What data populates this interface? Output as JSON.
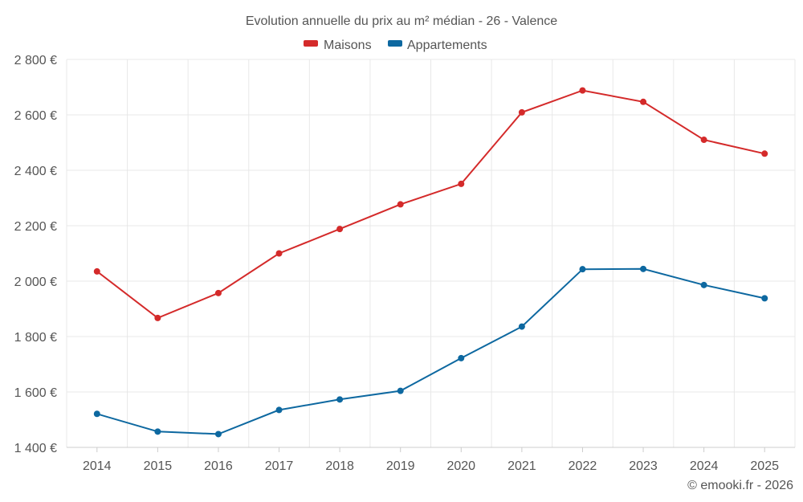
{
  "chart_data": {
    "type": "line",
    "title": "Evolution annuelle du prix au m² médian - 26 - Valence",
    "xlabel": "",
    "ylabel": "",
    "categories": [
      "2014",
      "2015",
      "2016",
      "2017",
      "2018",
      "2019",
      "2020",
      "2021",
      "2022",
      "2023",
      "2024",
      "2025"
    ],
    "ylim": [
      1400,
      2800
    ],
    "yticks": [
      1400,
      1600,
      1800,
      2000,
      2200,
      2400,
      2600,
      2800
    ],
    "ytick_labels": [
      "1 400 €",
      "1 600 €",
      "1 800 €",
      "2 000 €",
      "2 200 €",
      "2 400 €",
      "2 600 €",
      "2 800 €"
    ],
    "grid": true,
    "legend_position": "top-center",
    "series": [
      {
        "name": "Maisons",
        "color": "#d42a2a",
        "values": [
          2035,
          1867,
          1957,
          2100,
          2188,
          2277,
          2351,
          2609,
          2688,
          2647,
          2510,
          2460
        ]
      },
      {
        "name": "Appartements",
        "color": "#0d68a0",
        "values": [
          1521,
          1457,
          1448,
          1535,
          1573,
          1604,
          1722,
          1836,
          2043,
          2044,
          1986,
          1938
        ]
      }
    ],
    "credit": "© emooki.fr - 2026"
  }
}
